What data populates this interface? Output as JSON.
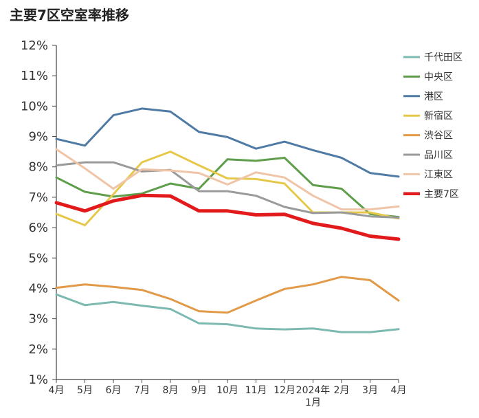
{
  "title": "主要7区空室率推移",
  "chart_data": {
    "type": "line",
    "title": "主要7区空室率推移",
    "xlabel": "",
    "ylabel": "",
    "ylim": [
      1,
      12
    ],
    "ytick_labels": [
      "1%",
      "2%",
      "3%",
      "4%",
      "5%",
      "6%",
      "7%",
      "8%",
      "9%",
      "10%",
      "11%",
      "12%"
    ],
    "categories": [
      "4月",
      "5月",
      "6月",
      "7月",
      "8月",
      "9月",
      "10月",
      "11月",
      "12月",
      "2024年 1月",
      "2月",
      "3月",
      "4月"
    ],
    "series": [
      {
        "name": "千代田区",
        "color": "#7cb9b0",
        "width": 3,
        "values": [
          3.8,
          3.45,
          3.55,
          3.43,
          3.32,
          2.85,
          2.82,
          2.68,
          2.65,
          2.68,
          2.56,
          2.56,
          2.66
        ]
      },
      {
        "name": "中央区",
        "color": "#5e9d4a",
        "width": 3,
        "values": [
          7.65,
          7.18,
          7.02,
          7.12,
          7.45,
          7.28,
          8.25,
          8.2,
          8.3,
          7.4,
          7.28,
          6.45,
          6.35
        ]
      },
      {
        "name": "港区",
        "color": "#4e7aa4",
        "width": 3,
        "values": [
          8.92,
          8.7,
          9.7,
          9.92,
          9.82,
          9.15,
          8.98,
          8.6,
          8.83,
          8.55,
          8.3,
          7.8,
          7.68
        ]
      },
      {
        "name": "新宿区",
        "color": "#e6c848",
        "width": 3,
        "values": [
          6.45,
          6.08,
          7.1,
          8.15,
          8.5,
          8.05,
          7.62,
          7.6,
          7.45,
          6.5,
          6.5,
          6.5,
          6.3
        ]
      },
      {
        "name": "渋谷区",
        "color": "#e29a48",
        "width": 3,
        "values": [
          4.02,
          4.13,
          4.05,
          3.95,
          3.65,
          3.25,
          3.2,
          3.6,
          3.98,
          4.13,
          4.38,
          4.27,
          3.6
        ]
      },
      {
        "name": "品川区",
        "color": "#9a9a9a",
        "width": 3,
        "values": [
          8.05,
          8.15,
          8.15,
          7.85,
          7.9,
          7.2,
          7.2,
          7.05,
          6.68,
          6.48,
          6.5,
          6.37,
          6.33
        ]
      },
      {
        "name": "江東区",
        "color": "#f0c4a6",
        "width": 3,
        "values": [
          8.58,
          7.95,
          7.28,
          7.92,
          7.88,
          7.8,
          7.42,
          7.82,
          7.65,
          7.05,
          6.6,
          6.6,
          6.7
        ]
      },
      {
        "name": "主要7区",
        "color": "#e21a1c",
        "width": 5,
        "values": [
          6.82,
          6.55,
          6.88,
          7.06,
          7.04,
          6.55,
          6.55,
          6.42,
          6.44,
          6.14,
          5.98,
          5.72,
          5.62
        ]
      }
    ],
    "grid": false,
    "legend": "right"
  }
}
